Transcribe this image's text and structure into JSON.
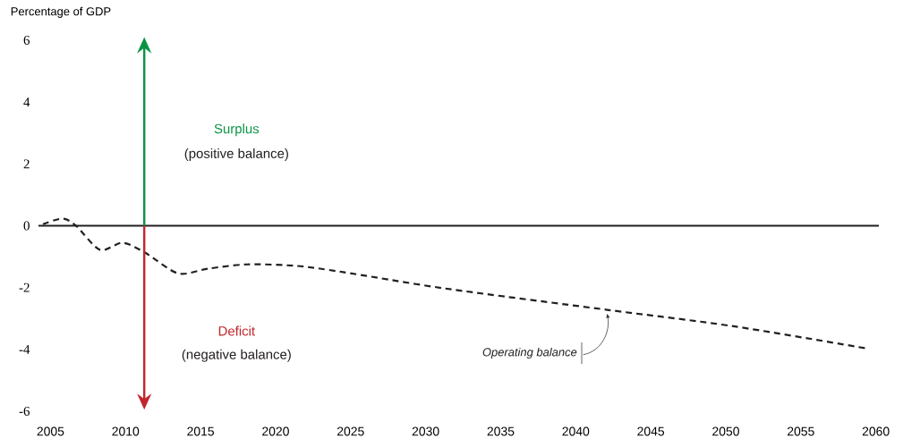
{
  "chart_data": {
    "type": "line",
    "ylabel": "Percentage of GDP",
    "x": [
      2004.5,
      2005.8,
      2006.7,
      2008.3,
      2009.8,
      2011.3,
      2013.5,
      2015.5,
      2018.1,
      2021.4,
      2024.5,
      2031.3,
      2042.1,
      2050.5,
      2059.4
    ],
    "series": [
      {
        "color": "#231f20",
        "values": [
          0.05,
          0.23,
          0,
          -0.78,
          -0.55,
          -0.87,
          -1.54,
          -1.39,
          -1.25,
          -1.3,
          -1.5,
          -2.03,
          -2.72,
          -3.25,
          -3.97
        ]
      }
    ],
    "xlim": [
      2004.2,
      2060.2
    ],
    "ylim": [
      -6,
      6
    ],
    "xticks": [
      2005,
      2010,
      2015,
      2020,
      2025,
      2030,
      2035,
      2040,
      2045,
      2050,
      2055,
      2060
    ],
    "yticks": [
      -6,
      -4,
      -2,
      0,
      2,
      4,
      6
    ],
    "ref_lines": [
      {
        "axis": "y",
        "value": 0,
        "color": "#231f20"
      }
    ],
    "annotations": [
      "Surplus",
      "(positive balance)",
      "Deficit",
      "(negative balance)",
      {
        "text": "Operating balance",
        "x": 2042.1,
        "y": -2.72
      }
    ],
    "grid": false,
    "marker": "none",
    "line_style": "dashed"
  }
}
